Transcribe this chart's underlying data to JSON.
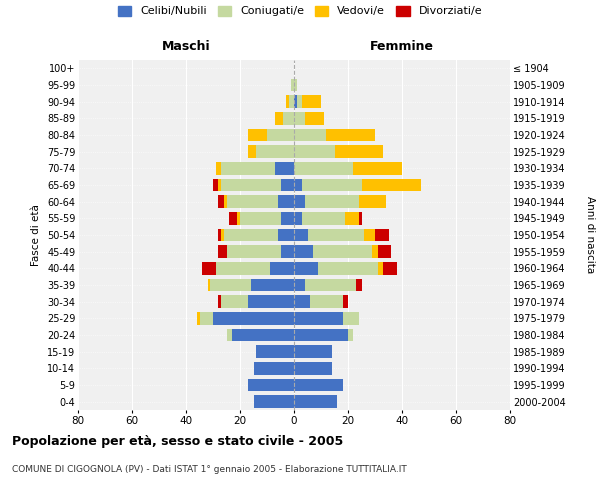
{
  "age_groups": [
    "0-4",
    "5-9",
    "10-14",
    "15-19",
    "20-24",
    "25-29",
    "30-34",
    "35-39",
    "40-44",
    "45-49",
    "50-54",
    "55-59",
    "60-64",
    "65-69",
    "70-74",
    "75-79",
    "80-84",
    "85-89",
    "90-94",
    "95-99",
    "100+"
  ],
  "birth_years": [
    "2000-2004",
    "1995-1999",
    "1990-1994",
    "1985-1989",
    "1980-1984",
    "1975-1979",
    "1970-1974",
    "1965-1969",
    "1960-1964",
    "1955-1959",
    "1950-1954",
    "1945-1949",
    "1940-1944",
    "1935-1939",
    "1930-1934",
    "1925-1929",
    "1920-1924",
    "1915-1919",
    "1910-1914",
    "1905-1909",
    "≤ 1904"
  ],
  "male": {
    "celibi": [
      15,
      17,
      15,
      14,
      23,
      30,
      17,
      16,
      9,
      5,
      6,
      5,
      6,
      5,
      7,
      0,
      0,
      0,
      0,
      0,
      0
    ],
    "coniugati": [
      0,
      0,
      0,
      0,
      2,
      5,
      10,
      15,
      20,
      20,
      20,
      15,
      19,
      22,
      20,
      14,
      10,
      4,
      2,
      1,
      0
    ],
    "vedovi": [
      0,
      0,
      0,
      0,
      0,
      1,
      0,
      1,
      0,
      0,
      1,
      1,
      1,
      1,
      2,
      3,
      7,
      3,
      1,
      0,
      0
    ],
    "divorziati": [
      0,
      0,
      0,
      0,
      0,
      0,
      1,
      0,
      5,
      3,
      1,
      3,
      2,
      2,
      0,
      0,
      0,
      0,
      0,
      0,
      0
    ]
  },
  "female": {
    "nubili": [
      16,
      18,
      14,
      14,
      20,
      18,
      6,
      4,
      9,
      7,
      5,
      3,
      4,
      3,
      0,
      0,
      0,
      0,
      1,
      0,
      0
    ],
    "coniugate": [
      0,
      0,
      0,
      0,
      2,
      6,
      12,
      19,
      22,
      22,
      21,
      16,
      20,
      22,
      22,
      15,
      12,
      4,
      2,
      1,
      0
    ],
    "vedove": [
      0,
      0,
      0,
      0,
      0,
      0,
      0,
      0,
      2,
      2,
      4,
      5,
      10,
      22,
      18,
      18,
      18,
      7,
      7,
      0,
      0
    ],
    "divorziate": [
      0,
      0,
      0,
      0,
      0,
      0,
      2,
      2,
      5,
      5,
      5,
      1,
      0,
      0,
      0,
      0,
      0,
      0,
      0,
      0,
      0
    ]
  },
  "colors": {
    "celibi_nubili": "#4472c4",
    "coniugati": "#c5d9a0",
    "vedovi": "#ffc000",
    "divorziati": "#cc0000"
  },
  "xlim": 80,
  "title": "Popolazione per età, sesso e stato civile - 2005",
  "subtitle": "COMUNE DI CIGOGNOLA (PV) - Dati ISTAT 1° gennaio 2005 - Elaborazione TUTTITALIA.IT",
  "xlabel_left": "Maschi",
  "xlabel_right": "Femmine",
  "ylabel_left": "Fasce di età",
  "ylabel_right": "Anni di nascita",
  "legend_labels": [
    "Celibi/Nubili",
    "Coniugati/e",
    "Vedovi/e",
    "Divorziati/e"
  ],
  "bg_color": "#ffffff",
  "plot_bg_color": "#f0f0f0",
  "grid_color": "#ffffff"
}
